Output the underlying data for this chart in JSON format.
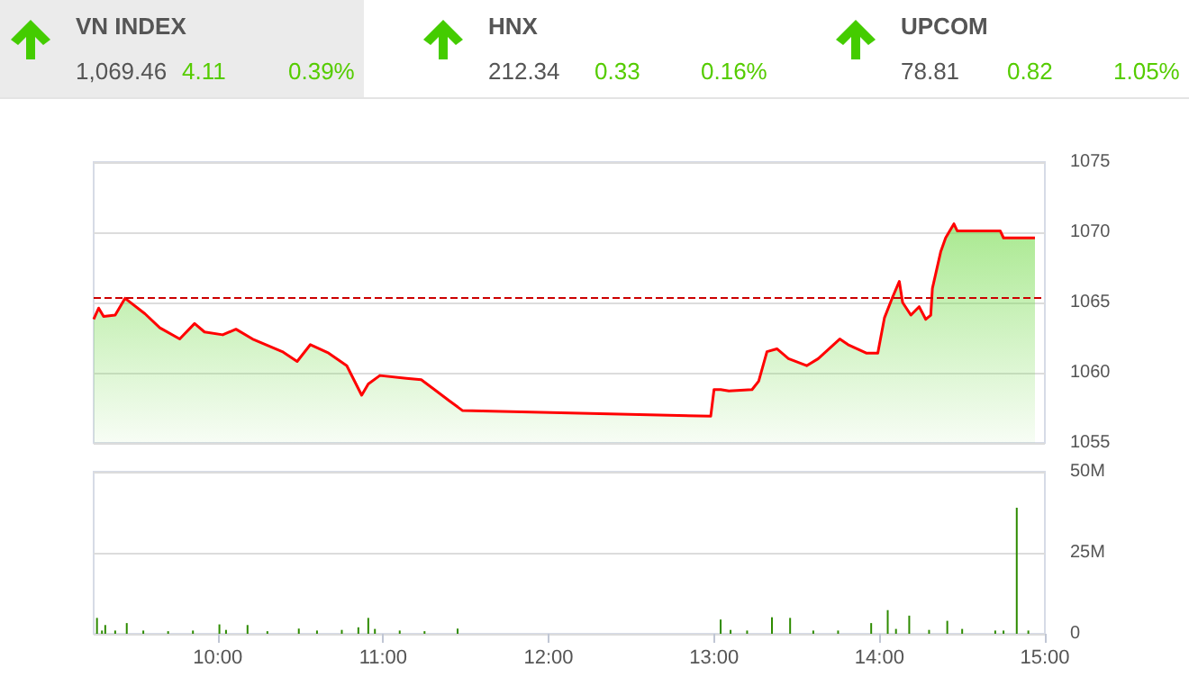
{
  "chart_data": [
    {
      "type": "other",
      "annotations": [
        "VN INDEX",
        "1,069.46",
        "4.11",
        "0.39%",
        "HNX",
        "212.34",
        "0.33",
        "0.16%",
        "UPCOM",
        "78.81",
        "0.82",
        "1.05%"
      ]
    },
    {
      "type": "area",
      "x": [
        9.25,
        9.28,
        9.31,
        9.38,
        9.44,
        9.56,
        9.65,
        9.77,
        9.86,
        9.92,
        10.03,
        10.11,
        10.21,
        10.39,
        10.48,
        10.56,
        10.67,
        10.78,
        10.87,
        10.91,
        10.98,
        11.14,
        11.23,
        11.31,
        11.4,
        11.48,
        12.98,
        13.0,
        13.04,
        13.09,
        13.23,
        13.27,
        13.32,
        13.38,
        13.45,
        13.56,
        13.63,
        13.76,
        13.81,
        13.92,
        13.99,
        14.03,
        14.08,
        14.12,
        14.14,
        14.19,
        14.24,
        14.28,
        14.31,
        14.32,
        14.37,
        14.4,
        14.45,
        14.47,
        14.73,
        14.75,
        14.94
      ],
      "series": [
        {
          "color": "#ff0000",
          "values": [
            1063.8,
            1064.6,
            1064.0,
            1064.1,
            1065.3,
            1064.2,
            1063.2,
            1062.4,
            1063.5,
            1062.9,
            1062.7,
            1063.1,
            1062.4,
            1061.5,
            1060.8,
            1062.0,
            1061.4,
            1060.5,
            1058.4,
            1059.2,
            1059.8,
            1059.6,
            1059.5,
            1058.8,
            1058.0,
            1057.3,
            1056.9,
            1058.8,
            1058.8,
            1058.7,
            1058.8,
            1059.4,
            1061.5,
            1061.7,
            1061.0,
            1060.5,
            1061.0,
            1062.4,
            1062.0,
            1061.4,
            1061.4,
            1063.9,
            1065.4,
            1066.5,
            1065.0,
            1064.1,
            1064.7,
            1063.8,
            1064.1,
            1066.0,
            1068.6,
            1069.6,
            1070.6,
            1070.1,
            1070.1,
            1069.6,
            1069.6
          ]
        }
      ],
      "xlim": [
        9.25,
        15
      ],
      "ylim": [
        1055,
        1075
      ],
      "yticks": [
        1055,
        1060,
        1065,
        1070,
        1075
      ],
      "tick_labels": "y",
      "grid": "y",
      "ref_lines": [
        {
          "axis": "y",
          "value": 1065.35,
          "color": "#cc0000",
          "line_style": "dashed"
        }
      ]
    },
    {
      "type": "bar",
      "x": [
        9.27,
        9.3,
        9.32,
        9.38,
        9.45,
        9.55,
        9.7,
        9.85,
        10.01,
        10.05,
        10.18,
        10.3,
        10.49,
        10.6,
        10.75,
        10.85,
        10.91,
        10.95,
        11.1,
        11.25,
        11.45,
        13.04,
        13.1,
        13.2,
        13.35,
        13.46,
        13.6,
        13.75,
        13.95,
        14.05,
        14.1,
        14.18,
        14.3,
        14.41,
        14.5,
        14.7,
        14.75,
        14.83,
        14.9
      ],
      "values": [
        4.9,
        1.0,
        2.7,
        1.0,
        3.3,
        1.0,
        0.8,
        1.0,
        2.9,
        1.2,
        2.7,
        0.8,
        1.6,
        1.0,
        1.2,
        2.0,
        4.9,
        1.5,
        1.0,
        0.8,
        1.6,
        4.4,
        1.2,
        1.0,
        5.1,
        4.9,
        1.0,
        1.0,
        3.3,
        7.3,
        1.5,
        5.6,
        1.2,
        4.0,
        1.5,
        1.0,
        1.0,
        38.9,
        1.0
      ],
      "color": "#2e8b00",
      "xlim": [
        9.25,
        15
      ],
      "xticks": [
        {
          "value": 10,
          "label": "10:00"
        },
        {
          "value": 11,
          "label": "11:00"
        },
        {
          "value": 12,
          "label": "12:00"
        },
        {
          "value": 13,
          "label": "13:00"
        },
        {
          "value": 14,
          "label": "14:00"
        },
        {
          "value": 15,
          "label": "15:00"
        }
      ],
      "ylim": [
        0,
        50
      ],
      "yticks": [
        0,
        {
          "value": 25,
          "label": "25M"
        },
        {
          "value": 50,
          "label": "50M"
        }
      ],
      "grid": "y"
    }
  ]
}
